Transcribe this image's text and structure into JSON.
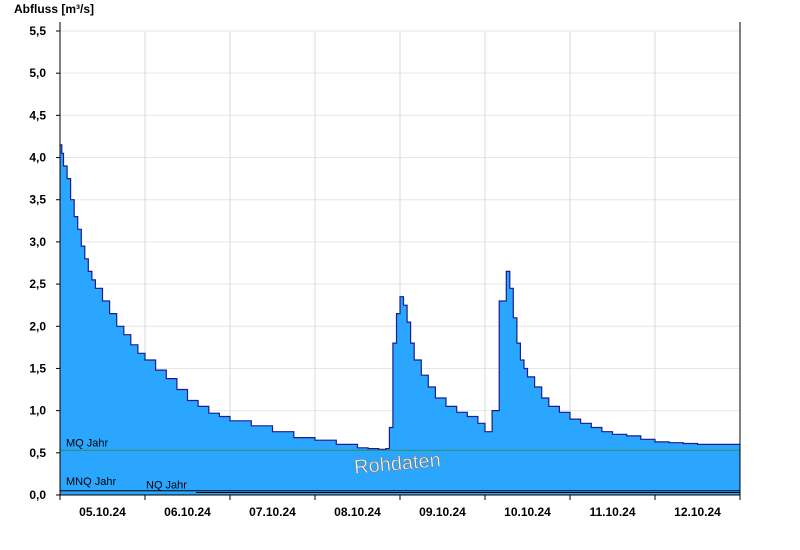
{
  "chart_data": {
    "type": "area",
    "ylabel": "Abfluss [m³/s]",
    "ylim": [
      0,
      5.6
    ],
    "yticks": [
      {
        "value": 0,
        "label": "0,0"
      },
      {
        "value": 0.5,
        "label": "0,5"
      },
      {
        "value": 1.0,
        "label": "1,0"
      },
      {
        "value": 1.5,
        "label": "1,5"
      },
      {
        "value": 2.0,
        "label": "2,0"
      },
      {
        "value": 2.5,
        "label": "2,5"
      },
      {
        "value": 3.0,
        "label": "3,0"
      },
      {
        "value": 3.5,
        "label": "3,5"
      },
      {
        "value": 4.0,
        "label": "4,0"
      },
      {
        "value": 4.5,
        "label": "4,5"
      },
      {
        "value": 5.0,
        "label": "5,0"
      },
      {
        "value": 5.5,
        "label": "5,5"
      }
    ],
    "xlim": [
      "05.10.24 00:00",
      "13.10.24 00:00"
    ],
    "xticks": [
      "05.10.24",
      "06.10.24",
      "07.10.24",
      "08.10.24",
      "09.10.24",
      "10.10.24",
      "11.10.24",
      "12.10.24"
    ],
    "grid": true,
    "reference_lines": [
      {
        "label": "MQ Jahr",
        "value": 0.53,
        "color": "#2e8b57"
      },
      {
        "label": "MNQ Jahr",
        "value": 0.05,
        "color": "#000000"
      },
      {
        "label": "NQ Jahr",
        "value": 0.03,
        "color": "#000000"
      }
    ],
    "annotation": "Rohdaten",
    "fill_color": "#2aa6ff",
    "line_color": "#1c1c8c",
    "series": [
      {
        "x": [
          "05.10.24 00:00",
          "05.10.24 00:30",
          "05.10.24 01:00",
          "05.10.24 02:00",
          "05.10.24 03:00",
          "05.10.24 04:00",
          "05.10.24 05:00",
          "05.10.24 06:00",
          "05.10.24 07:00",
          "05.10.24 08:00",
          "05.10.24 09:00",
          "05.10.24 10:00",
          "05.10.24 12:00",
          "05.10.24 14:00",
          "05.10.24 16:00",
          "05.10.24 18:00",
          "05.10.24 20:00",
          "05.10.24 22:00",
          "06.10.24 00:00",
          "06.10.24 03:00",
          "06.10.24 06:00",
          "06.10.24 09:00",
          "06.10.24 12:00",
          "06.10.24 15:00",
          "06.10.24 18:00",
          "06.10.24 21:00",
          "07.10.24 00:00",
          "07.10.24 06:00",
          "07.10.24 12:00",
          "07.10.24 18:00",
          "08.10.24 00:00",
          "08.10.24 06:00",
          "08.10.24 12:00",
          "08.10.24 15:00",
          "08.10.24 18:00",
          "08.10.24 20:00",
          "08.10.24 21:00",
          "08.10.24 22:00",
          "08.10.24 23:00",
          "09.10.24 00:00",
          "09.10.24 01:00",
          "09.10.24 02:00",
          "09.10.24 03:00",
          "09.10.24 04:00",
          "09.10.24 06:00",
          "09.10.24 08:00",
          "09.10.24 10:00",
          "09.10.24 13:00",
          "09.10.24 16:00",
          "09.10.24 19:00",
          "09.10.24 22:00",
          "10.10.24 00:00",
          "10.10.24 02:00",
          "10.10.24 04:00",
          "10.10.24 06:00",
          "10.10.24 07:00",
          "10.10.24 08:00",
          "10.10.24 09:00",
          "10.10.24 10:00",
          "10.10.24 11:00",
          "10.10.24 12:00",
          "10.10.24 14:00",
          "10.10.24 16:00",
          "10.10.24 18:00",
          "10.10.24 21:00",
          "11.10.24 00:00",
          "11.10.24 03:00",
          "11.10.24 06:00",
          "11.10.24 09:00",
          "11.10.24 12:00",
          "11.10.24 16:00",
          "11.10.24 20:00",
          "12.10.24 00:00",
          "12.10.24 04:00",
          "12.10.24 08:00",
          "12.10.24 12:00",
          "12.10.24 16:00",
          "12.10.24 20:00",
          "13.10.24 00:00"
        ],
        "y": [
          4.15,
          4.05,
          3.9,
          3.75,
          3.5,
          3.3,
          3.15,
          2.95,
          2.8,
          2.65,
          2.55,
          2.45,
          2.3,
          2.15,
          2.0,
          1.9,
          1.78,
          1.68,
          1.6,
          1.48,
          1.38,
          1.25,
          1.12,
          1.05,
          0.97,
          0.93,
          0.88,
          0.82,
          0.75,
          0.68,
          0.65,
          0.6,
          0.56,
          0.55,
          0.54,
          0.55,
          0.8,
          1.8,
          2.15,
          2.35,
          2.25,
          2.05,
          1.8,
          1.6,
          1.42,
          1.28,
          1.15,
          1.05,
          0.98,
          0.93,
          0.85,
          0.75,
          1.0,
          2.3,
          2.65,
          2.45,
          2.1,
          1.8,
          1.6,
          1.5,
          1.4,
          1.28,
          1.15,
          1.05,
          0.98,
          0.9,
          0.85,
          0.8,
          0.75,
          0.72,
          0.7,
          0.66,
          0.63,
          0.62,
          0.61,
          0.6,
          0.6,
          0.6,
          0.6
        ]
      }
    ]
  }
}
